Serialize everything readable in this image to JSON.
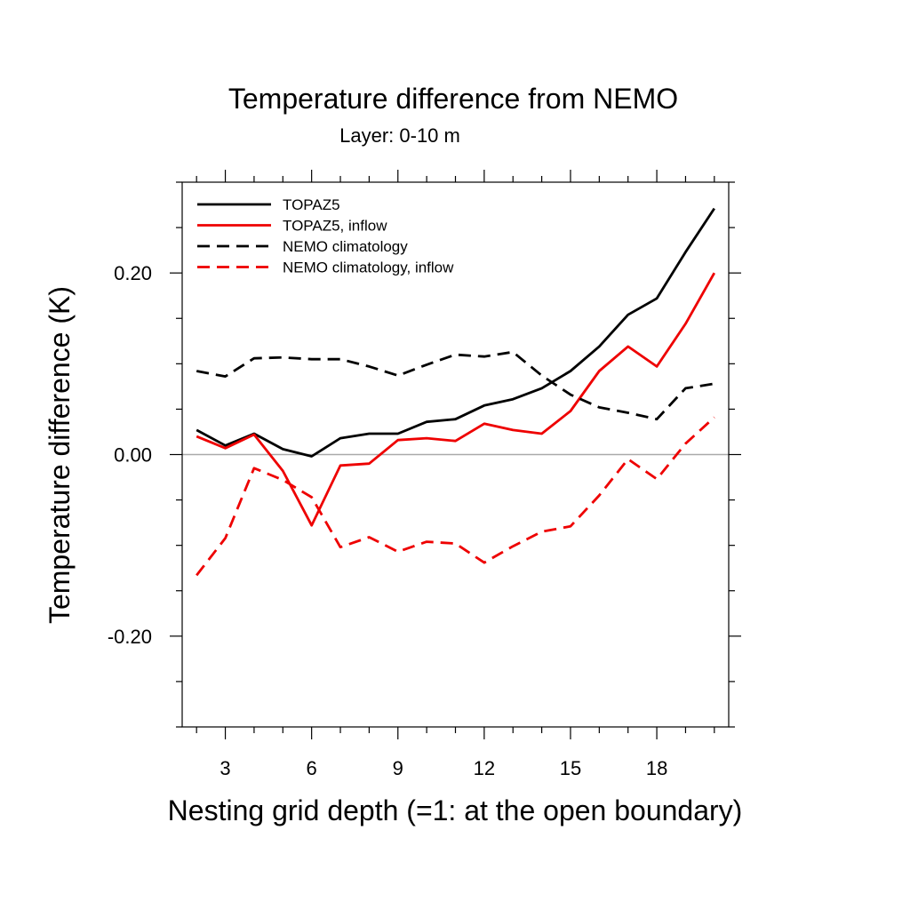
{
  "chart_data": {
    "type": "line",
    "title": "Temperature difference from NEMO",
    "subtitle": "Layer: 0-10 m",
    "xlabel": "Nesting grid depth (=1: at the open boundary)",
    "ylabel": "Temperature difference (K)",
    "xlim": [
      1.5,
      20.5
    ],
    "ylim": [
      -0.3,
      0.3
    ],
    "x_ticks": [
      3,
      6,
      9,
      12,
      15,
      18
    ],
    "x_tick_labels": [
      "3",
      "6",
      "9",
      "12",
      "15",
      "18"
    ],
    "y_ticks": [
      0.2,
      0.0,
      -0.2
    ],
    "y_tick_labels": [
      "0.20",
      "0.00",
      "-0.20"
    ],
    "zero_line": true,
    "grid": false,
    "legend_position": "top-left",
    "x": [
      2,
      3,
      4,
      5,
      6,
      7,
      8,
      9,
      10,
      11,
      12,
      13,
      14,
      15,
      16,
      17,
      18,
      19,
      20
    ],
    "series": [
      {
        "name": "TOPAZ5",
        "color": "#000000",
        "dash": "solid",
        "values": [
          0.027,
          0.01,
          0.023,
          0.006,
          -0.002,
          0.018,
          0.023,
          0.023,
          0.036,
          0.039,
          0.054,
          0.061,
          0.073,
          0.092,
          0.119,
          0.154,
          0.172,
          0.223,
          0.271
        ]
      },
      {
        "name": "TOPAZ5, inflow",
        "color": "#ee0000",
        "dash": "solid",
        "values": [
          0.02,
          0.007,
          0.022,
          -0.018,
          -0.078,
          -0.012,
          -0.01,
          0.016,
          0.018,
          0.015,
          0.034,
          0.027,
          0.023,
          0.048,
          0.092,
          0.119,
          0.097,
          0.144,
          0.2
        ]
      },
      {
        "name": "NEMO climatology",
        "color": "#000000",
        "dash": "dashed",
        "values": [
          0.092,
          0.086,
          0.106,
          0.107,
          0.105,
          0.105,
          0.097,
          0.087,
          0.099,
          0.11,
          0.108,
          0.113,
          0.087,
          0.066,
          0.052,
          0.046,
          0.039,
          0.073,
          0.078
        ]
      },
      {
        "name": "NEMO climatology, inflow",
        "color": "#ee0000",
        "dash": "dashed",
        "values": [
          -0.133,
          -0.092,
          -0.015,
          -0.028,
          -0.047,
          -0.102,
          -0.091,
          -0.107,
          -0.096,
          -0.098,
          -0.119,
          -0.101,
          -0.085,
          -0.079,
          -0.045,
          -0.005,
          -0.027,
          0.012,
          0.041
        ]
      }
    ]
  }
}
